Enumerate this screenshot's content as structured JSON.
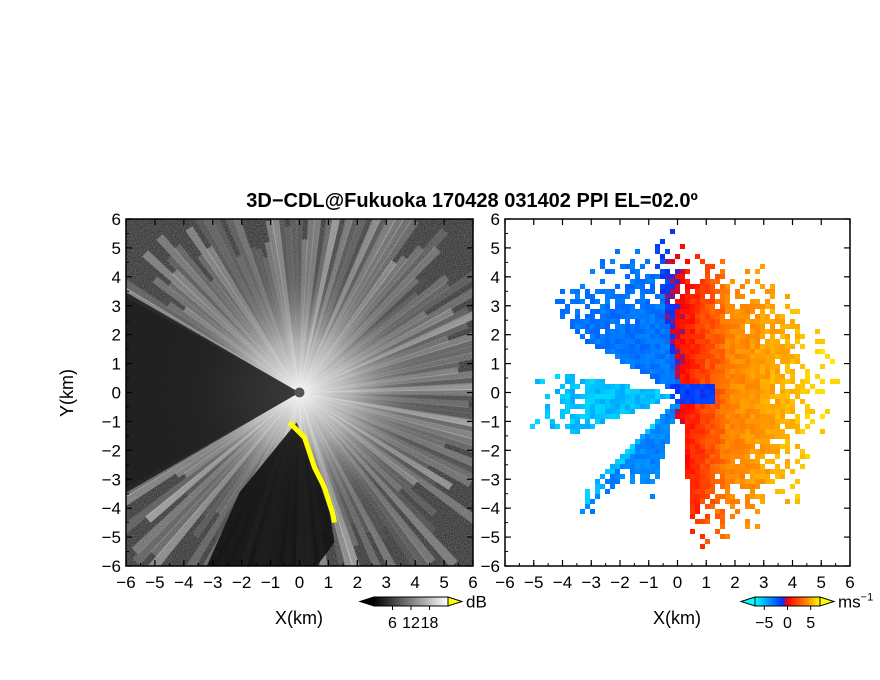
{
  "title": "3D−CDL@Fukuoka 170428 031402 PPI EL=02.0º",
  "chart_data": [
    {
      "type": "heatmap",
      "panel": "snr",
      "xlabel": "X(km)",
      "ylabel": "Y(km)",
      "xlim": [
        -6,
        6
      ],
      "ylim": [
        -6,
        6
      ],
      "xticks": [
        "−6",
        "−5",
        "−4",
        "−3",
        "−2",
        "−1",
        "0",
        "1",
        "2",
        "3",
        "4",
        "5",
        "6"
      ],
      "yticks": [
        "6",
        "5",
        "4",
        "3",
        "2",
        "1",
        "0",
        "−1",
        "−2",
        "−3",
        "−4",
        "−5",
        "−6"
      ],
      "colorbar": {
        "unit": "dB",
        "ticks": [
          "6",
          "12",
          "18"
        ],
        "range": [
          0,
          24
        ],
        "colors": [
          "#000000",
          "#ffffff"
        ],
        "over_color": "#ffff00"
      },
      "radar_center": [
        0,
        0
      ],
      "max_range_km": 6,
      "blocked_sector_deg": [
        150,
        210
      ]
    },
    {
      "type": "heatmap",
      "panel": "doppler_velocity",
      "xlabel": "X(km)",
      "ylabel": "",
      "xlim": [
        -6,
        6
      ],
      "ylim": [
        -6,
        6
      ],
      "xticks": [
        "−6",
        "−5",
        "−4",
        "−3",
        "−2",
        "−1",
        "0",
        "1",
        "2",
        "3",
        "4",
        "5",
        "6"
      ],
      "yticks": [
        "6",
        "5",
        "4",
        "3",
        "2",
        "1",
        "0",
        "−1",
        "−2",
        "−3",
        "−4",
        "−5",
        "−6"
      ],
      "colorbar": {
        "unit": "ms",
        "unit_exp": "−1",
        "ticks": [
          "−5",
          "0",
          "5"
        ],
        "range": [
          -7,
          7
        ],
        "colors": [
          "#00ffff",
          "#0033ff",
          "#ff0000",
          "#ff8800",
          "#ffff00"
        ]
      },
      "radar_center": [
        0,
        0
      ],
      "max_range_km": 6,
      "blocked_sector_deg": [
        150,
        210
      ]
    }
  ]
}
